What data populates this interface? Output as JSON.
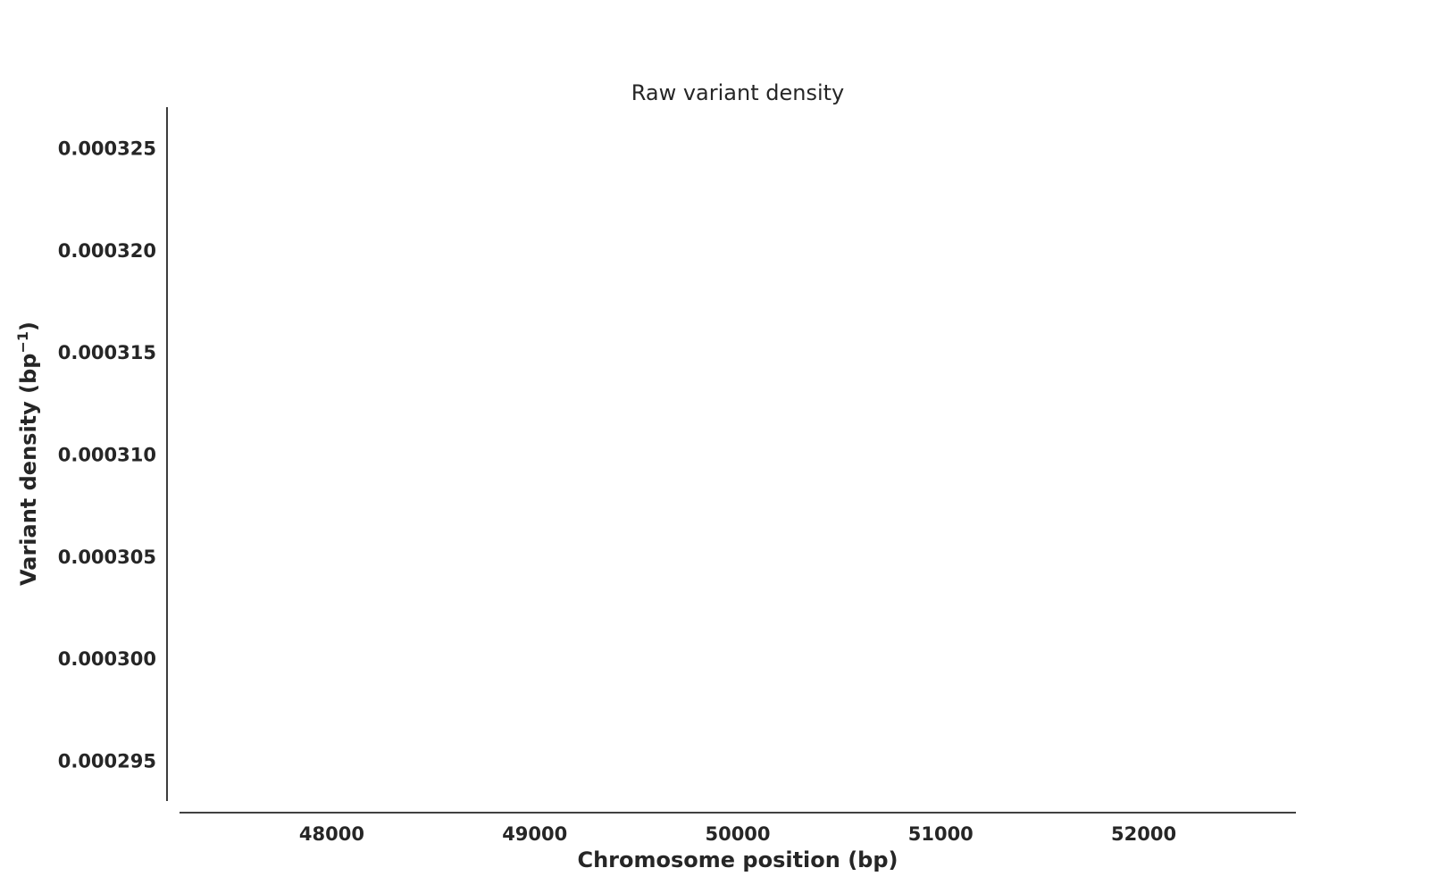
{
  "chart_data": {
    "type": "line",
    "title": "Raw variant density",
    "xlabel": "Chromosome position (bp)",
    "ylabel_main": "Variant density (bp",
    "ylabel_sup": "−1",
    "ylabel_close": ")",
    "xlim": [
      47250,
      52750
    ],
    "ylim": [
      0.000293,
      0.000327
    ],
    "x_ticks": [
      {
        "value": 48000,
        "label": "48000"
      },
      {
        "value": 49000,
        "label": "49000"
      },
      {
        "value": 50000,
        "label": "50000"
      },
      {
        "value": 51000,
        "label": "51000"
      },
      {
        "value": 52000,
        "label": "52000"
      }
    ],
    "y_ticks": [
      {
        "value": 0.000325,
        "label": "0.000325"
      },
      {
        "value": 0.00032,
        "label": "0.000320"
      },
      {
        "value": 0.000315,
        "label": "0.000315"
      },
      {
        "value": 0.00031,
        "label": "0.000310"
      },
      {
        "value": 0.000305,
        "label": "0.000305"
      },
      {
        "value": 0.0003,
        "label": "0.000300"
      },
      {
        "value": 0.000295,
        "label": "0.000295"
      }
    ],
    "series": [],
    "grid": false,
    "colors": {
      "text": "#262626",
      "spine": "#262626",
      "background": "#ffffff"
    }
  }
}
